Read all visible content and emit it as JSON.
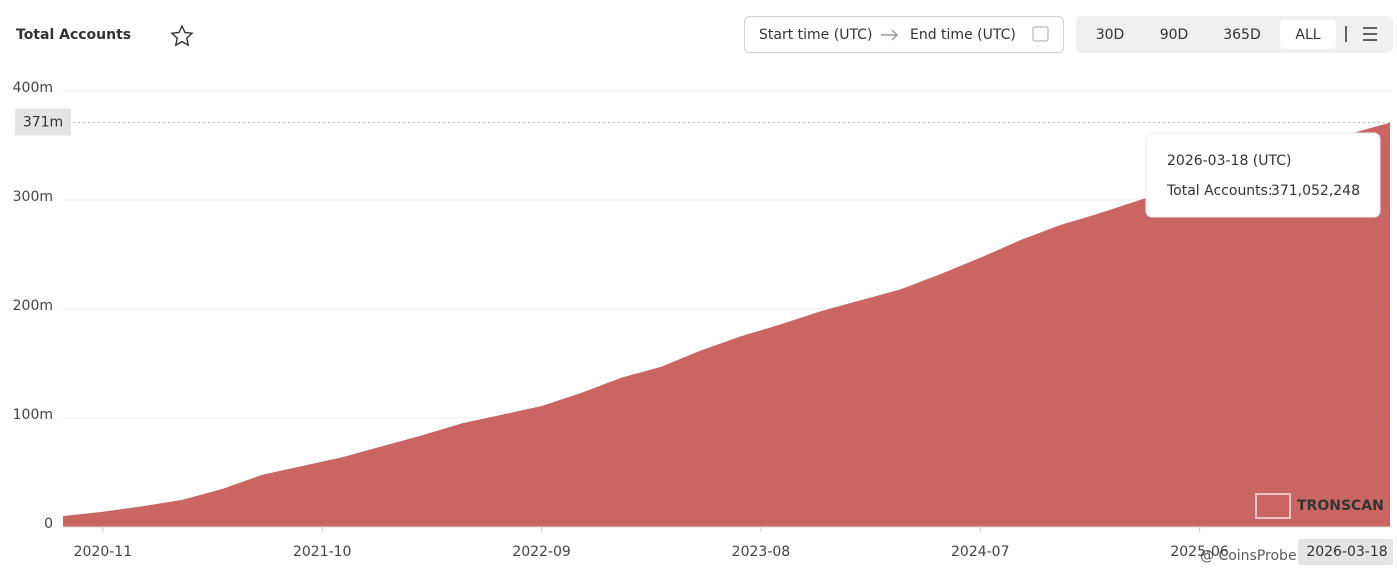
{
  "header": {
    "title": "Total Accounts",
    "date_range": {
      "start": "Start time (UTC)",
      "end": "End time (UTC)"
    },
    "range_buttons": [
      "30D",
      "90D",
      "365D",
      "ALL"
    ],
    "active_range": 3
  },
  "chart_data": {
    "type": "area",
    "name": "Total Accounts",
    "color": "#c96664",
    "x": [
      "2020-09",
      "2020-11",
      "2021-01",
      "2021-03",
      "2021-05",
      "2021-07",
      "2021-09",
      "2021-11",
      "2022-01",
      "2022-03",
      "2022-05",
      "2022-07",
      "2022-09",
      "2022-11",
      "2023-01",
      "2023-03",
      "2023-05",
      "2023-07",
      "2023-09",
      "2023-11",
      "2024-01",
      "2024-03",
      "2024-05",
      "2024-07",
      "2024-09",
      "2024-11",
      "2025-01",
      "2025-03",
      "2025-05",
      "2025-07",
      "2025-09",
      "2025-11",
      "2026-01",
      "2026-03-18"
    ],
    "values": [
      10000000,
      14000000,
      19000000,
      25000000,
      35000000,
      48000000,
      56000000,
      64000000,
      74000000,
      84000000,
      95000000,
      103000000,
      111000000,
      123000000,
      137000000,
      147000000,
      162000000,
      175000000,
      186000000,
      198000000,
      208000000,
      218000000,
      232000000,
      247000000,
      263000000,
      277000000,
      288000000,
      300000000,
      312000000,
      323000000,
      335000000,
      346000000,
      358000000,
      371052248
    ],
    "value_labels": [
      null,
      null,
      null,
      null,
      null,
      null,
      null,
      null,
      null,
      null,
      null,
      null,
      null,
      null,
      null,
      null,
      null,
      null,
      null,
      null,
      null,
      null,
      null,
      null,
      null,
      null,
      null,
      null,
      null,
      null,
      null,
      null,
      null,
      "371,052,248"
    ],
    "xlim": [
      "2020-09",
      "2026-03-18"
    ],
    "xticks": [
      "2020-11",
      "2021-10",
      "2022-09",
      "2023-08",
      "2024-07",
      "2025-06"
    ],
    "ylim": [
      0,
      400000000
    ],
    "yticks": [
      0,
      {
        "value": 100000000,
        "label": "100m"
      },
      {
        "value": 200000000,
        "label": "200m"
      },
      {
        "value": 300000000,
        "label": "300m"
      },
      {
        "value": 400000000,
        "label": "400m"
      }
    ],
    "grid": true,
    "crosshair_y_label": "371m",
    "tooltip": {
      "title": "2026-03-18 (UTC)",
      "label": "Total Accounts:"
    },
    "watermark": "TRONSCAN",
    "overlay_watermark": "@ CoinsProbe"
  }
}
